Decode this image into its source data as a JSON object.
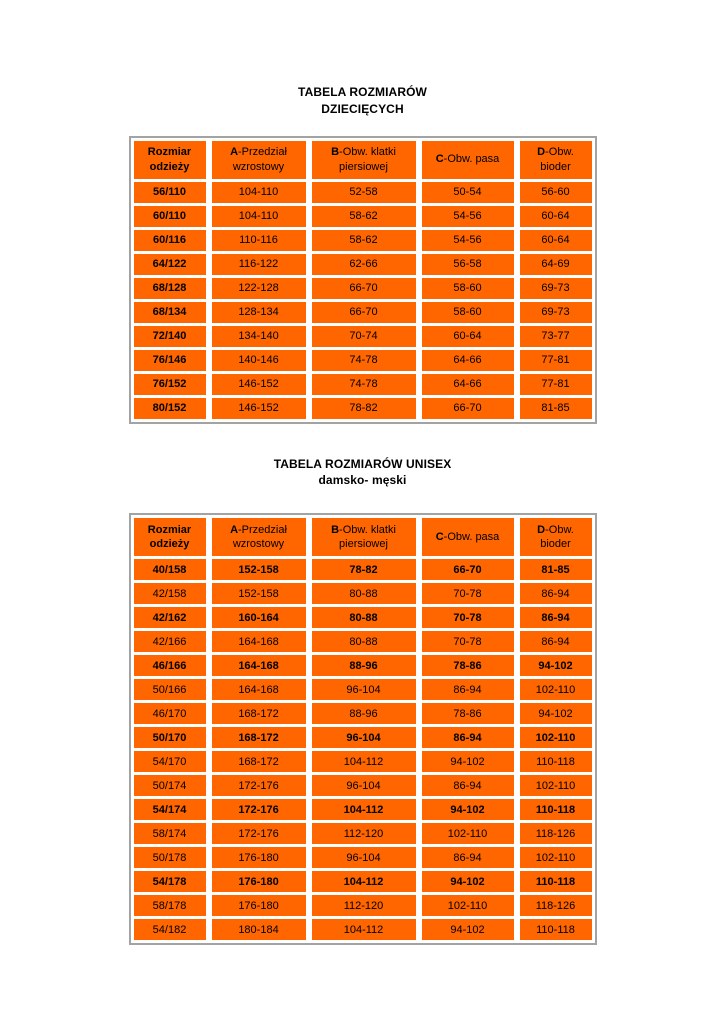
{
  "colors": {
    "cell_orange": "#ff6600",
    "table_border": "#a3a3a3",
    "text": "#000000",
    "page_background": "#ffffff"
  },
  "tables": [
    {
      "title": "TABELA ROZMIARÓW\nDZIECIĘCYCH",
      "first_col_bold": true,
      "headers": [
        {
          "bold": "Rozmiar\nodzieży",
          "rest": ""
        },
        {
          "bold": "A",
          "rest": "-Przedział\nwzrostowy"
        },
        {
          "bold": "B",
          "rest": "-Obw. klatki\npiersiowej"
        },
        {
          "bold": "C",
          "rest": "-Obw. pasa"
        },
        {
          "bold": "D",
          "rest": "-Obw.\nbioder"
        }
      ],
      "rows": [
        {
          "bold": false,
          "cells": [
            "56/110",
            "104-110",
            "52-58",
            "50-54",
            "56-60"
          ]
        },
        {
          "bold": false,
          "cells": [
            "60/110",
            "104-110",
            "58-62",
            "54-56",
            "60-64"
          ]
        },
        {
          "bold": false,
          "cells": [
            "60/116",
            "110-116",
            "58-62",
            "54-56",
            "60-64"
          ]
        },
        {
          "bold": false,
          "cells": [
            "64/122",
            "116-122",
            "62-66",
            "56-58",
            "64-69"
          ]
        },
        {
          "bold": false,
          "cells": [
            "68/128",
            "122-128",
            "66-70",
            "58-60",
            "69-73"
          ]
        },
        {
          "bold": false,
          "cells": [
            "68/134",
            "128-134",
            "66-70",
            "58-60",
            "69-73"
          ]
        },
        {
          "bold": false,
          "cells": [
            "72/140",
            "134-140",
            "70-74",
            "60-64",
            "73-77"
          ]
        },
        {
          "bold": false,
          "cells": [
            "76/146",
            "140-146",
            "74-78",
            "64-66",
            "77-81"
          ]
        },
        {
          "bold": false,
          "cells": [
            "76/152",
            "146-152",
            "74-78",
            "64-66",
            "77-81"
          ]
        },
        {
          "bold": false,
          "cells": [
            "80/152",
            "146-152",
            "78-82",
            "66-70",
            "81-85"
          ]
        }
      ]
    },
    {
      "title": "TABELA ROZMIARÓW UNISEX\ndamsko- męski",
      "first_col_bold": false,
      "headers": [
        {
          "bold": "Rozmiar\nodzieży",
          "rest": ""
        },
        {
          "bold": "A",
          "rest": "-Przedział\nwzrostowy"
        },
        {
          "bold": "B",
          "rest": "-Obw. klatki\npiersiowej"
        },
        {
          "bold": "C",
          "rest": "-Obw. pasa"
        },
        {
          "bold": "D",
          "rest": "-Obw.\nbioder"
        }
      ],
      "rows": [
        {
          "bold": true,
          "cells": [
            "40/158",
            "152-158",
            "78-82",
            "66-70",
            "81-85"
          ]
        },
        {
          "bold": false,
          "cells": [
            "42/158",
            "152-158",
            "80-88",
            "70-78",
            "86-94"
          ]
        },
        {
          "bold": true,
          "cells": [
            "42/162",
            "160-164",
            "80-88",
            "70-78",
            "86-94"
          ]
        },
        {
          "bold": false,
          "cells": [
            "42/166",
            "164-168",
            "80-88",
            "70-78",
            "86-94"
          ]
        },
        {
          "bold": true,
          "cells": [
            "46/166",
            "164-168",
            "88-96",
            "78-86",
            "94-102"
          ]
        },
        {
          "bold": false,
          "cells": [
            "50/166",
            "164-168",
            "96-104",
            "86-94",
            "102-110"
          ]
        },
        {
          "bold": false,
          "cells": [
            "46/170",
            "168-172",
            "88-96",
            "78-86",
            "94-102"
          ]
        },
        {
          "bold": true,
          "cells": [
            "50/170",
            "168-172",
            "96-104",
            "86-94",
            "102-110"
          ]
        },
        {
          "bold": false,
          "cells": [
            "54/170",
            "168-172",
            "104-112",
            "94-102",
            "110-118"
          ]
        },
        {
          "bold": false,
          "cells": [
            "50/174",
            "172-176",
            "96-104",
            "86-94",
            "102-110"
          ]
        },
        {
          "bold": true,
          "cells": [
            "54/174",
            "172-176",
            "104-112",
            "94-102",
            "110-118"
          ]
        },
        {
          "bold": false,
          "cells": [
            "58/174",
            "172-176",
            "112-120",
            "102-110",
            "118-126"
          ]
        },
        {
          "bold": false,
          "cells": [
            "50/178",
            "176-180",
            "96-104",
            "86-94",
            "102-110"
          ]
        },
        {
          "bold": true,
          "cells": [
            "54/178",
            "176-180",
            "104-112",
            "94-102",
            "110-118"
          ]
        },
        {
          "bold": false,
          "cells": [
            "58/178",
            "176-180",
            "112-120",
            "102-110",
            "118-126"
          ]
        },
        {
          "bold": false,
          "cells": [
            "54/182",
            "180-184",
            "104-112",
            "94-102",
            "110-118"
          ]
        }
      ]
    }
  ]
}
